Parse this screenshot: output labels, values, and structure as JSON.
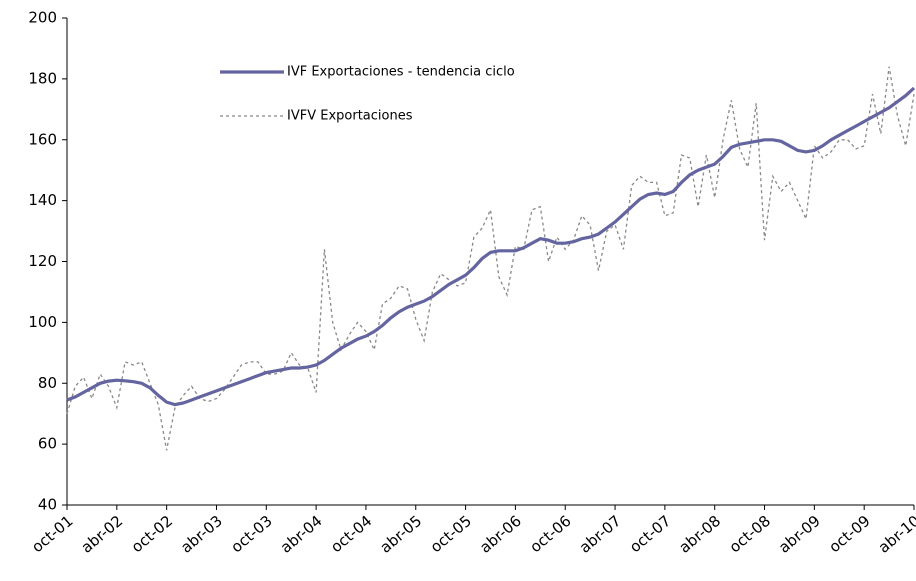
{
  "chart_data": {
    "type": "line",
    "categories": [
      "oct-01",
      null,
      null,
      null,
      null,
      null,
      "abr-02",
      null,
      null,
      null,
      null,
      null,
      "oct-02",
      null,
      null,
      null,
      null,
      null,
      "abr-03",
      null,
      null,
      null,
      null,
      null,
      "oct-03",
      null,
      null,
      null,
      null,
      null,
      "abr-04",
      null,
      null,
      null,
      null,
      null,
      "oct-04",
      null,
      null,
      null,
      null,
      null,
      "abr-05",
      null,
      null,
      null,
      null,
      null,
      "oct-05",
      null,
      null,
      null,
      null,
      null,
      "abr-06",
      null,
      null,
      null,
      null,
      null,
      "oct-06",
      null,
      null,
      null,
      null,
      null,
      "abr-07",
      null,
      null,
      null,
      null,
      null,
      "oct-07",
      null,
      null,
      null,
      null,
      null,
      "abr-08",
      null,
      null,
      null,
      null,
      null,
      "oct-08",
      null,
      null,
      null,
      null,
      null,
      "abr-09",
      null,
      null,
      null,
      null,
      null,
      "oct-09",
      null,
      null,
      null,
      null,
      null,
      "abr-10"
    ],
    "series": [
      {
        "name": "IVF Exportaciones - tendencia ciclo",
        "color": "#6464a0",
        "style": "solid",
        "values": [
          74.5,
          75.5,
          77,
          78.5,
          80,
          80.7,
          81,
          80.8,
          80.5,
          80,
          78.5,
          76,
          73.8,
          73,
          73.5,
          74.5,
          75.5,
          76.5,
          77.5,
          78.5,
          79.5,
          80.5,
          81.5,
          82.5,
          83.5,
          84,
          84.5,
          85,
          85,
          85.3,
          86,
          87.5,
          89.5,
          91.5,
          93,
          94.5,
          95.5,
          97,
          99,
          101.5,
          103.5,
          105,
          106,
          107,
          108.5,
          110.5,
          112.5,
          114,
          115.5,
          118,
          121,
          123,
          123.5,
          123.5,
          123.5,
          124.5,
          126,
          127.5,
          127,
          126,
          126,
          126.5,
          127.5,
          128,
          129,
          131,
          133,
          135.5,
          138,
          140.5,
          142,
          142.5,
          142,
          143,
          146,
          148.5,
          150,
          151,
          152,
          154.5,
          157.5,
          158.5,
          159,
          159.5,
          160,
          160,
          159.5,
          158,
          156.5,
          156,
          156.5,
          158,
          160,
          161.5,
          163,
          164.5,
          166,
          167.5,
          169,
          170.5,
          172.5,
          174.5,
          177
        ]
      },
      {
        "name": "IVFV Exportaciones",
        "color": "#888888",
        "style": "dashed",
        "values": [
          70,
          79,
          82,
          75,
          83,
          79,
          72,
          87,
          86,
          87,
          80,
          73,
          58,
          72,
          76,
          79,
          75,
          74,
          75,
          78,
          82,
          86,
          87,
          87,
          83,
          83,
          84,
          90,
          86,
          85,
          77,
          124,
          100,
          91,
          96,
          100,
          97,
          91,
          106,
          108,
          112,
          111,
          101,
          94,
          110,
          116,
          114,
          112,
          113,
          128,
          131,
          137,
          115,
          109,
          125,
          124,
          137,
          138,
          120,
          128,
          124,
          127,
          135,
          132,
          117,
          130,
          132,
          124,
          145,
          148,
          146,
          146,
          135,
          136,
          155,
          154,
          138,
          155,
          141,
          160,
          173,
          157,
          151,
          172,
          127,
          148,
          143,
          146,
          140,
          134,
          158,
          154,
          156,
          160,
          160,
          157,
          158,
          175,
          162,
          184,
          168,
          158,
          175
        ]
      }
    ],
    "ylim": [
      40,
      200
    ],
    "yticks": [
      40,
      60,
      80,
      100,
      120,
      140,
      160,
      180,
      200
    ]
  }
}
